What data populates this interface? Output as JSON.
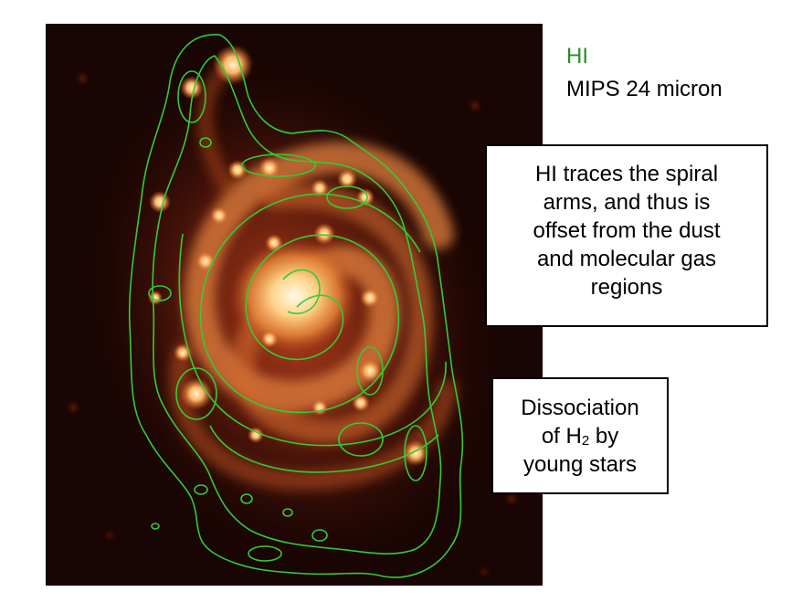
{
  "colors": {
    "hi_contour": "#33cc33",
    "hi_legend_text": "#2e8b2e",
    "image_background": "#190503",
    "text": "#000000",
    "box_border": "#000000"
  },
  "legend": {
    "hi_label": "HI",
    "mips_label": "MIPS 24 micron"
  },
  "callouts": {
    "spiral": {
      "lines": [
        "HI traces the spiral",
        "arms, and thus is",
        "offset from the dust",
        "and molecular gas",
        "regions"
      ]
    },
    "dissociation": {
      "line1": "Dissociation",
      "line2_pre": "of H",
      "line2_sub": "2",
      "line2_post": " by",
      "line3": "young stars"
    }
  },
  "image": {
    "icon": "spiral-galaxy-image",
    "overlay_icon": "hi-contour-overlay"
  }
}
